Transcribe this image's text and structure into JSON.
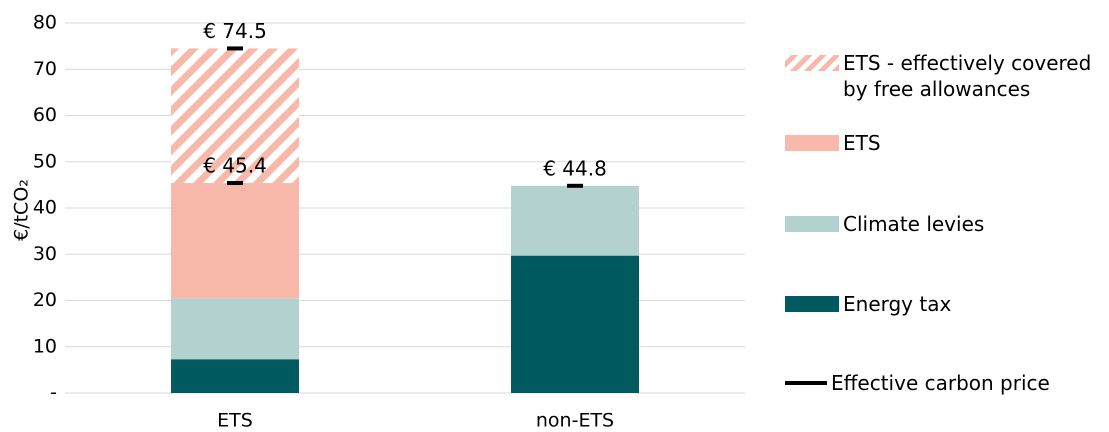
{
  "chart_data": {
    "type": "stacked-bar",
    "y_label": "€/tCO₂",
    "categories": [
      "ETS",
      "non-ETS"
    ],
    "series": [
      {
        "name": "Energy tax",
        "color": "#005a5f",
        "values": [
          7.3,
          29.7
        ]
      },
      {
        "name": "Climate levies",
        "color": "#b3d1cf",
        "values": [
          13.2,
          15.1
        ]
      },
      {
        "name": "ETS",
        "color": "#f8b9ab",
        "values": [
          24.9,
          0
        ]
      },
      {
        "name": "ETS - effectively covered by free allowances",
        "color": "#f8b9ab",
        "hatch": true,
        "values": [
          29.1,
          0
        ]
      }
    ],
    "markers": {
      "name": "Effective carbon price",
      "color": "#000000",
      "values": [
        45.4,
        44.8
      ],
      "value_labels": [
        "€ 45.4",
        "€ 44.8"
      ]
    },
    "totals": {
      "values": [
        74.5,
        null
      ],
      "value_labels": [
        "€ 74.5",
        null
      ]
    },
    "ylim": [
      0,
      80
    ],
    "yticks": [
      {
        "value": 0,
        "label": "-"
      },
      10,
      20,
      30,
      40,
      50,
      60,
      70,
      80
    ],
    "grid": true
  }
}
